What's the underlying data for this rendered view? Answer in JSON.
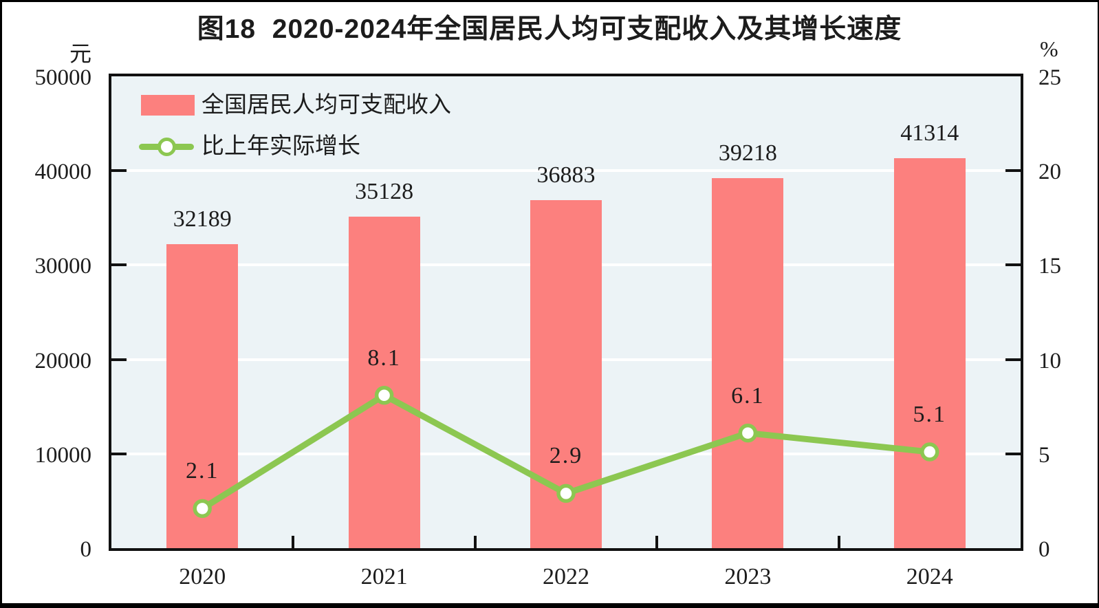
{
  "figure": {
    "title": "图18  2020-2024年全国居民人均可支配收入及其增长速度",
    "left_axis_unit": "元",
    "right_axis_unit": "%"
  },
  "legend": {
    "income_label": "全国居民人均可支配收入",
    "growth_label": "比上年实际增长"
  },
  "colors": {
    "bar": "#fc807e",
    "line": "#8cc751",
    "marker_fill": "#ffffff",
    "plot_background": "#ecf3f6",
    "gridline": "#ffffff",
    "axis": "#111111",
    "text": "#1c1c1c"
  },
  "chart_data": {
    "type": "bar",
    "subtype": "bar+line combo",
    "title": "图18  2020-2024年全国居民人均可支配收入及其增长速度",
    "categories": [
      "2020",
      "2021",
      "2022",
      "2023",
      "2024"
    ],
    "series": [
      {
        "name": "全国居民人均可支配收入",
        "type": "bar",
        "axis": "left",
        "unit": "元",
        "values": [
          32189,
          35128,
          36883,
          39218,
          41314
        ],
        "color": "#fc807e"
      },
      {
        "name": "比上年实际增长",
        "type": "line",
        "axis": "right",
        "unit": "%",
        "values": [
          2.1,
          8.1,
          2.9,
          6.1,
          5.1
        ],
        "color": "#8cc751",
        "marker": "white-circle"
      }
    ],
    "y_left": {
      "unit": "元",
      "min": 0,
      "max": 50000,
      "ticks": [
        0,
        10000,
        20000,
        30000,
        40000,
        50000
      ]
    },
    "y_right": {
      "unit": "%",
      "min": 0,
      "max": 25,
      "ticks": [
        0,
        5,
        10,
        15,
        20,
        25
      ]
    },
    "grid": "horizontal white gridlines on light blue plot background",
    "legend_position": "top-left inside plot"
  }
}
